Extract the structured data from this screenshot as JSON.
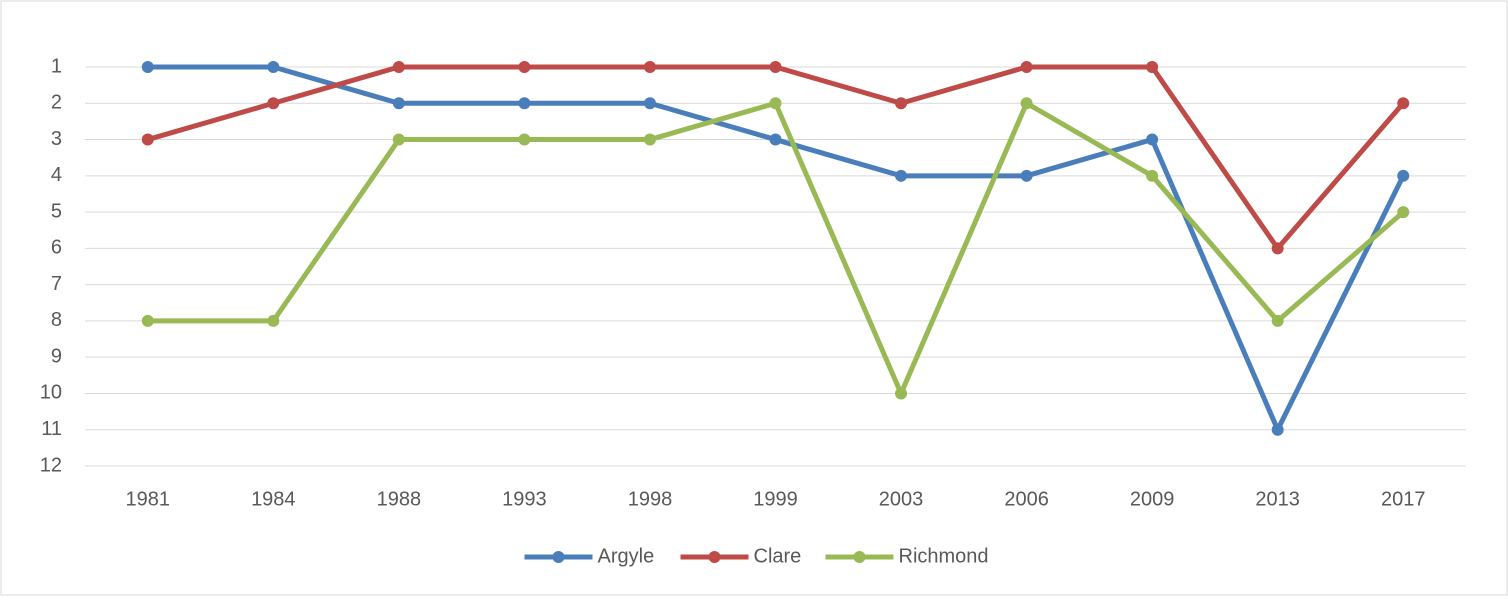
{
  "chart_data": {
    "type": "line",
    "categories": [
      "1981",
      "1984",
      "1988",
      "1993",
      "1998",
      "1999",
      "2003",
      "2006",
      "2009",
      "2013",
      "2017"
    ],
    "series": [
      {
        "name": "Argyle",
        "color": "#4a7ebb",
        "values": [
          1,
          1,
          2,
          2,
          2,
          3,
          4,
          4,
          3,
          11,
          4
        ]
      },
      {
        "name": "Clare",
        "color": "#be4b48",
        "values": [
          3,
          2,
          1,
          1,
          1,
          1,
          2,
          1,
          1,
          6,
          2
        ]
      },
      {
        "name": "Richmond",
        "color": "#98b954",
        "values": [
          8,
          8,
          3,
          3,
          3,
          2,
          10,
          2,
          4,
          8,
          5
        ]
      }
    ],
    "ylim": [
      1,
      12
    ],
    "yticks": [
      1,
      2,
      3,
      4,
      5,
      6,
      7,
      8,
      9,
      10,
      11,
      12
    ],
    "y_inverted": true,
    "grid": true,
    "legend": "bottom"
  }
}
